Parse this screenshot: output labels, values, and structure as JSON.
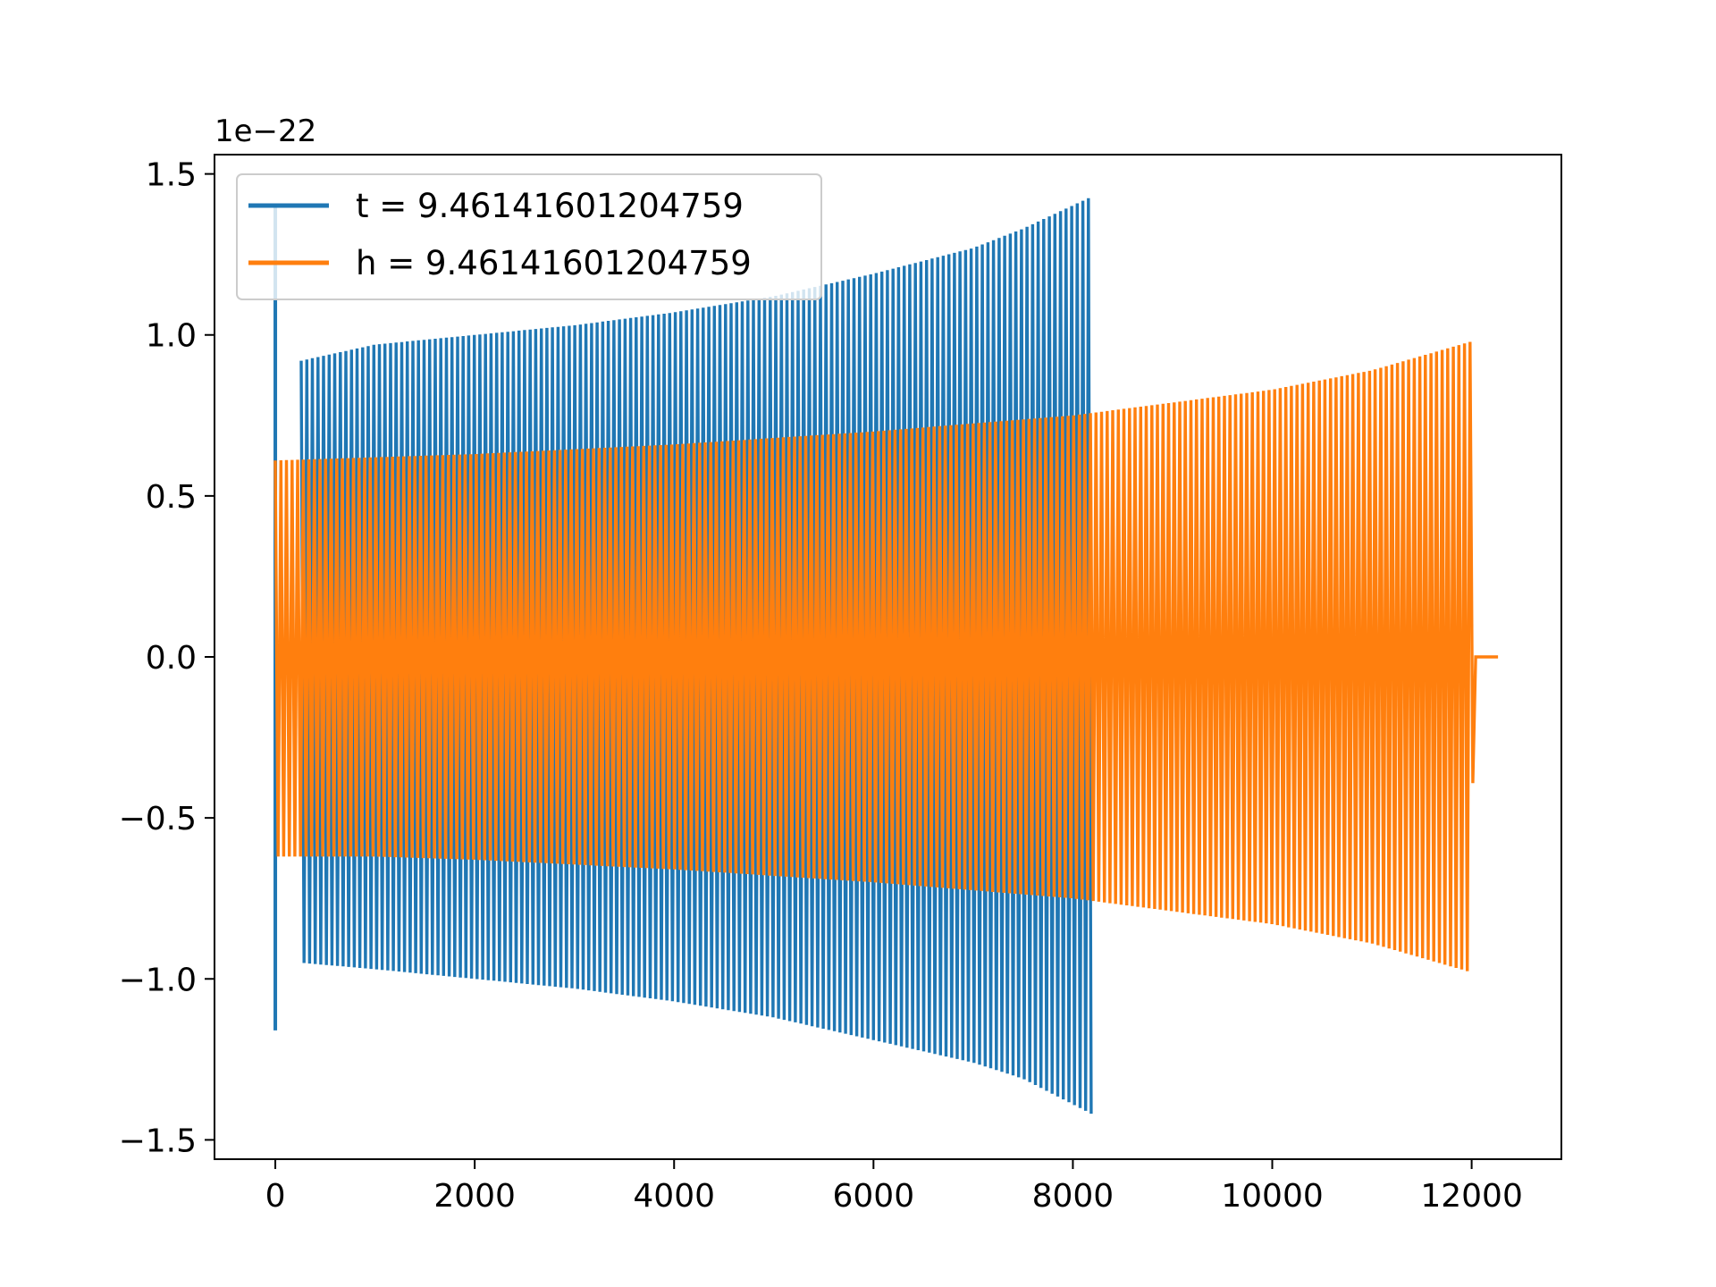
{
  "chart_data": {
    "type": "line",
    "title": "",
    "xlabel": "",
    "ylabel": "",
    "y_offset_label": "1e−22",
    "xlim": [
      -610,
      12900
    ],
    "ylim": [
      -1.56,
      1.56
    ],
    "x_ticks": [
      0,
      2000,
      4000,
      6000,
      8000,
      10000,
      12000
    ],
    "x_tick_labels": [
      "0",
      "2000",
      "4000",
      "6000",
      "8000",
      "10000",
      "12000"
    ],
    "y_ticks": [
      -1.5,
      -1.0,
      -0.5,
      0.0,
      0.5,
      1.0,
      1.5
    ],
    "y_tick_labels": [
      "−1.5",
      "−1.0",
      "−0.5",
      "0.0",
      "0.5",
      "1.0",
      "1.5"
    ],
    "grid": false,
    "legend_position": "top-left",
    "series": [
      {
        "name": "t = 9.46141601204759",
        "color": "#1f77b4",
        "x_range": [
          0,
          8192
        ],
        "spike": {
          "x": 0,
          "max": 1.4,
          "min": -1.16
        },
        "envelope": [
          {
            "x": 260,
            "upper": 0.92,
            "lower": -0.95
          },
          {
            "x": 1000,
            "upper": 0.97,
            "lower": -0.97
          },
          {
            "x": 2000,
            "upper": 1.0,
            "lower": -1.0
          },
          {
            "x": 3000,
            "upper": 1.03,
            "lower": -1.03
          },
          {
            "x": 4000,
            "upper": 1.07,
            "lower": -1.07
          },
          {
            "x": 5000,
            "upper": 1.12,
            "lower": -1.12
          },
          {
            "x": 6000,
            "upper": 1.19,
            "lower": -1.19
          },
          {
            "x": 7000,
            "upper": 1.27,
            "lower": -1.26
          },
          {
            "x": 7500,
            "upper": 1.33,
            "lower": -1.31
          },
          {
            "x": 8192,
            "upper": 1.43,
            "lower": -1.42
          }
        ]
      },
      {
        "name": "h = 9.46141601204759",
        "color": "#ff7f0e",
        "x_range": [
          0,
          12288
        ],
        "envelope": [
          {
            "x": 0,
            "upper": 0.61,
            "lower": -0.62
          },
          {
            "x": 1000,
            "upper": 0.62,
            "lower": -0.62
          },
          {
            "x": 2000,
            "upper": 0.63,
            "lower": -0.63
          },
          {
            "x": 4000,
            "upper": 0.66,
            "lower": -0.66
          },
          {
            "x": 6000,
            "upper": 0.7,
            "lower": -0.7
          },
          {
            "x": 8000,
            "upper": 0.75,
            "lower": -0.75
          },
          {
            "x": 10000,
            "upper": 0.83,
            "lower": -0.83
          },
          {
            "x": 11000,
            "upper": 0.89,
            "lower": -0.89
          },
          {
            "x": 12000,
            "upper": 0.98,
            "lower": -0.98
          },
          {
            "x": 12020,
            "upper": 0.0,
            "lower": 0.0
          },
          {
            "x": 12288,
            "upper": 0.0,
            "lower": 0.0
          }
        ]
      }
    ]
  }
}
